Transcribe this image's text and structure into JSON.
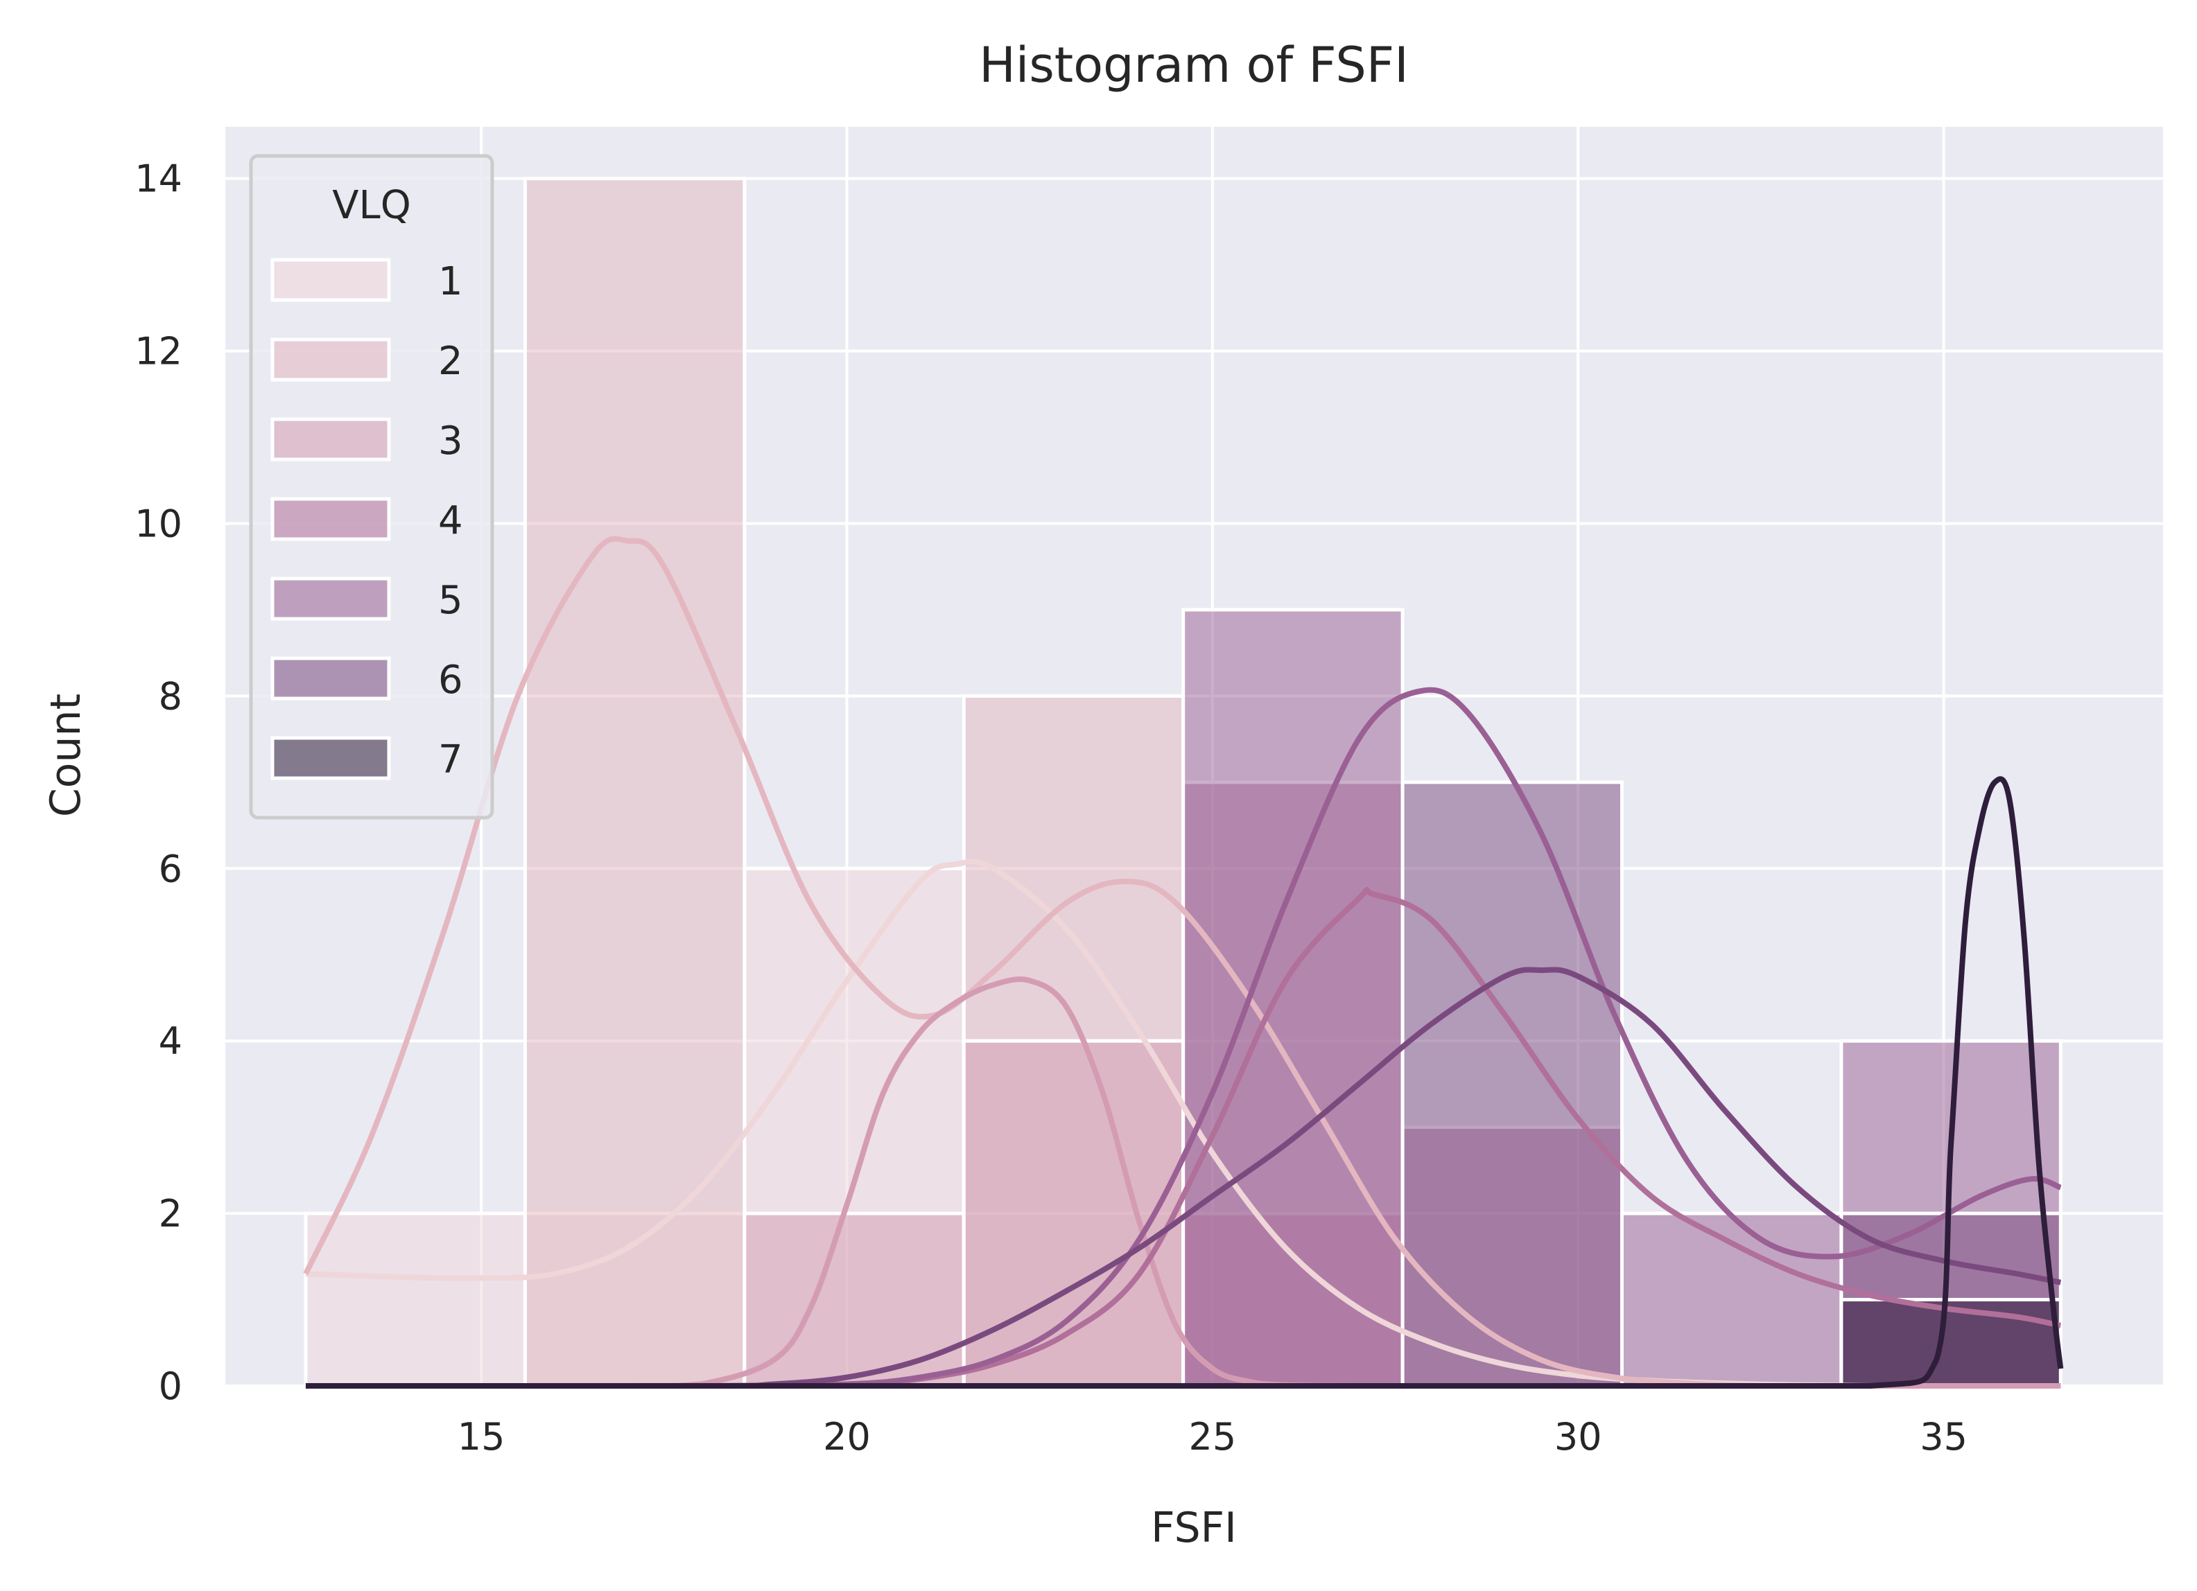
{
  "chart_data": {
    "type": "bar",
    "title": "Histogram of FSFI",
    "xlabel": "FSFI",
    "ylabel": "Count",
    "xlim": [
      11.5,
      38.0
    ],
    "ylim": [
      0,
      14.6
    ],
    "xticks": [
      15,
      20,
      25,
      30,
      35
    ],
    "yticks": [
      0,
      2,
      4,
      6,
      8,
      10,
      12,
      14
    ],
    "grid": true,
    "legend": {
      "title": "VLQ",
      "placement": "top-left"
    },
    "bin_edges": [
      12.6,
      15.6,
      18.6,
      21.6,
      24.6,
      27.6,
      30.6,
      33.6,
      36.6
    ],
    "series": [
      {
        "name": "1",
        "color": "#efd6d9",
        "counts": [
          2,
          2,
          6,
          0,
          0,
          0,
          0,
          0
        ],
        "kde": {
          "x": [
            12.6,
            14,
            15,
            16,
            17,
            18,
            19,
            20,
            21,
            21.5,
            22,
            23,
            24,
            25,
            26,
            27,
            28,
            29,
            30,
            31,
            32,
            33,
            34,
            35,
            36,
            36.6
          ],
          "y": [
            1.3,
            1.26,
            1.25,
            1.3,
            1.6,
            2.3,
            3.4,
            4.7,
            5.85,
            6.05,
            6.0,
            5.3,
            4.1,
            2.7,
            1.6,
            0.9,
            0.5,
            0.25,
            0.12,
            0.06,
            0.03,
            0.01,
            0,
            0,
            0,
            0
          ]
        }
      },
      {
        "name": "2",
        "color": "#e4b7c0",
        "counts": [
          0,
          14,
          0,
          8,
          0,
          0,
          0,
          0
        ],
        "kde": {
          "x": [
            12.6,
            13.5,
            14.5,
            15.5,
            16.5,
            17,
            17.5,
            18.5,
            19.5,
            20.5,
            21.2,
            22,
            23,
            23.8,
            24.5,
            25.5,
            26.5,
            27.5,
            28.5,
            29.5,
            30.5,
            31.5,
            32.5,
            33.5,
            34.5,
            35.5,
            36.6
          ],
          "y": [
            1.3,
            2.9,
            5.3,
            8.0,
            9.6,
            9.8,
            9.5,
            7.6,
            5.6,
            4.5,
            4.3,
            4.8,
            5.6,
            5.85,
            5.6,
            4.5,
            3.1,
            1.7,
            0.8,
            0.3,
            0.1,
            0.03,
            0,
            0,
            0,
            0,
            0
          ]
        }
      },
      {
        "name": "3",
        "color": "#d49cb2",
        "counts": [
          0,
          0,
          2,
          4,
          2,
          0,
          0,
          0
        ],
        "kde": {
          "x": [
            12.6,
            17,
            18,
            19,
            19.5,
            20,
            20.5,
            21,
            21.5,
            22,
            22.5,
            23,
            23.5,
            24,
            24.5,
            25,
            25.5,
            26,
            27,
            28,
            30,
            33,
            36.6
          ],
          "y": [
            0,
            0,
            0.02,
            0.3,
            0.9,
            2.1,
            3.4,
            4.1,
            4.45,
            4.65,
            4.7,
            4.4,
            3.4,
            1.9,
            0.7,
            0.2,
            0.05,
            0.01,
            0,
            0,
            0,
            0,
            0
          ]
        }
      },
      {
        "name": "4",
        "color": "#b0709a",
        "counts": [
          0,
          0,
          0,
          0,
          7,
          3,
          0,
          1
        ],
        "kde": {
          "x": [
            12.6,
            18,
            20,
            21,
            22,
            23,
            24,
            25,
            26,
            27,
            27.2,
            28,
            29,
            30,
            31,
            32,
            33,
            34,
            35,
            36,
            36.6
          ],
          "y": [
            0,
            0,
            0.02,
            0.08,
            0.25,
            0.6,
            1.3,
            2.9,
            4.7,
            5.65,
            5.7,
            5.4,
            4.3,
            3.1,
            2.2,
            1.7,
            1.3,
            1.05,
            0.9,
            0.8,
            0.7
          ]
        }
      },
      {
        "name": "5",
        "color": "#9a6094",
        "counts": [
          0,
          0,
          0,
          0,
          9,
          0,
          2,
          4
        ],
        "kde": {
          "x": [
            12.6,
            18,
            20,
            21,
            22,
            23,
            24,
            25,
            26,
            27,
            27.8,
            28.5,
            29.5,
            30.5,
            31.5,
            32.5,
            33.5,
            34.5,
            35.5,
            36.2,
            36.6
          ],
          "y": [
            0,
            0,
            0.02,
            0.1,
            0.3,
            0.75,
            1.7,
            3.4,
            5.6,
            7.5,
            8.05,
            7.8,
            6.4,
            4.3,
            2.6,
            1.7,
            1.5,
            1.75,
            2.2,
            2.4,
            2.3
          ]
        }
      },
      {
        "name": "6",
        "color": "#7a4a7f",
        "counts": [
          0,
          0,
          0,
          0,
          0,
          7,
          0,
          2
        ],
        "kde": {
          "x": [
            12.6,
            18,
            19,
            20,
            21,
            22,
            23,
            24,
            25,
            26,
            27,
            28,
            29,
            29.5,
            30,
            31,
            32,
            33,
            34,
            35,
            36,
            36.6
          ],
          "y": [
            0,
            0,
            0.02,
            0.1,
            0.3,
            0.65,
            1.1,
            1.6,
            2.2,
            2.8,
            3.5,
            4.2,
            4.75,
            4.82,
            4.75,
            4.2,
            3.2,
            2.3,
            1.7,
            1.45,
            1.3,
            1.2
          ]
        }
      },
      {
        "name": "7",
        "color": "#2e1e3b",
        "counts": [
          0,
          0,
          0,
          0,
          0,
          0,
          0,
          1
        ],
        "kde": {
          "x": [
            12.6,
            20,
            25,
            30,
            34,
            34.9,
            35.1,
            35.3,
            35.5,
            35.7,
            35.9,
            36.1,
            36.3,
            36.5,
            36.6
          ],
          "y": [
            0,
            0,
            0,
            0,
            0,
            0.3,
            2.8,
            5.4,
            6.5,
            7.0,
            6.8,
            5.2,
            2.6,
            0.9,
            0.2
          ]
        }
      }
    ]
  }
}
